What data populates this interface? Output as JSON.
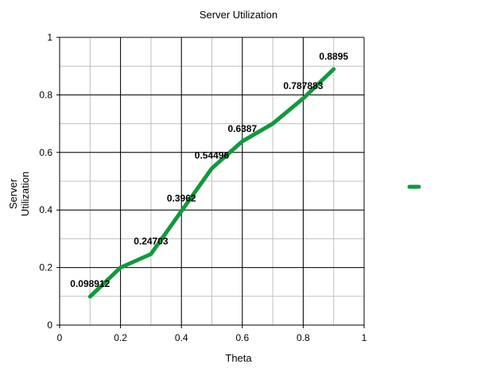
{
  "chart_data": {
    "type": "line",
    "title": "Server Utilization",
    "xlabel": "Theta",
    "ylabel": [
      "Server",
      "Utilization"
    ],
    "xlim": [
      0,
      1
    ],
    "ylim": [
      0,
      1
    ],
    "xticks": [
      0,
      0.2,
      0.4,
      0.6,
      0.8,
      1
    ],
    "xtick_labels": [
      "0",
      "0.2",
      "0.4",
      "0.6",
      "0.8",
      "1"
    ],
    "yticks": [
      0,
      0.2,
      0.4,
      0.6,
      0.8,
      1
    ],
    "ytick_labels": [
      "0",
      "0.2",
      "0.4",
      "0.6",
      "0.8",
      "1"
    ],
    "minor_grid_step": 0.1,
    "grid": true,
    "legend_position": "right",
    "series": [
      {
        "color": "#0f9a3c",
        "x": [
          0.1,
          0.2,
          0.3,
          0.4,
          0.5,
          0.6,
          0.7,
          0.8,
          0.9
        ],
        "y": [
          0.098912,
          0.2,
          0.24703,
          0.3962,
          0.54496,
          0.6387,
          0.7,
          0.787883,
          0.8895
        ],
        "labels": [
          {
            "x": 0.1,
            "y": 0.098912,
            "text": "0.098912"
          },
          {
            "x": 0.3,
            "y": 0.24703,
            "text": "0.24703"
          },
          {
            "x": 0.4,
            "y": 0.3962,
            "text": "0.3962"
          },
          {
            "x": 0.5,
            "y": 0.54496,
            "text": "0.54496"
          },
          {
            "x": 0.6,
            "y": 0.6387,
            "text": "0.6387"
          },
          {
            "x": 0.8,
            "y": 0.787883,
            "text": "0.787883"
          },
          {
            "x": 0.9,
            "y": 0.8895,
            "text": "0.8895"
          }
        ]
      }
    ]
  }
}
